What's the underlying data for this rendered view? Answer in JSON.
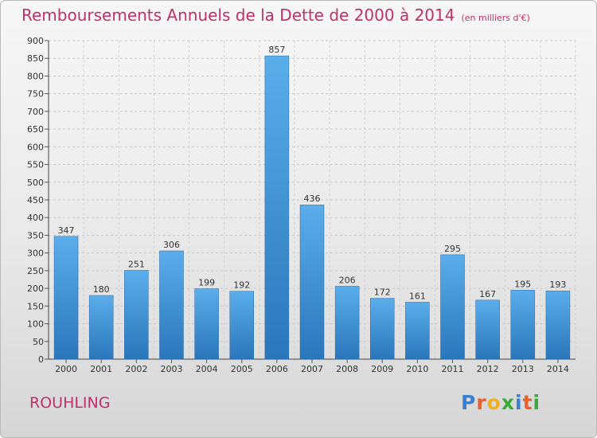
{
  "title": "Remboursements Annuels de la Dette de 2000 à 2014",
  "subtitle": "(en milliers d'€)",
  "commune": "ROUHLING",
  "logo": {
    "letters": [
      "P",
      "r",
      "o",
      "x",
      "i",
      "t",
      "i"
    ],
    "colors": [
      "#3a7fd0",
      "#e8602c",
      "#f0b21c",
      "#3aaa3a",
      "#3a7fd0",
      "#e8602c",
      "#3aaa3a"
    ]
  },
  "colors": {
    "bar": "#4a9de0",
    "bar_dark": "#2a76bb",
    "title": "#c0306a"
  },
  "chart_data": {
    "type": "bar",
    "title": "Remboursements Annuels de la Dette de 2000 à 2014",
    "subtitle": "(en milliers d'€)",
    "categories": [
      "2000",
      "2001",
      "2002",
      "2003",
      "2004",
      "2005",
      "2006",
      "2007",
      "2008",
      "2009",
      "2010",
      "2011",
      "2012",
      "2013",
      "2014"
    ],
    "values": [
      347,
      180,
      251,
      306,
      199,
      192,
      857,
      436,
      206,
      172,
      161,
      295,
      167,
      195,
      193
    ],
    "ylim": [
      0,
      900
    ],
    "yticks": [
      0,
      50,
      100,
      150,
      200,
      250,
      300,
      350,
      400,
      450,
      500,
      550,
      600,
      650,
      700,
      750,
      800,
      850,
      900
    ],
    "grid": true,
    "xlabel": "",
    "ylabel": ""
  }
}
